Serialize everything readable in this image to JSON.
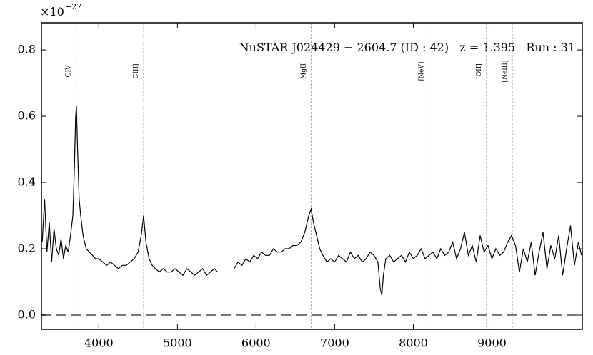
{
  "chart_data": {
    "type": "line",
    "title": "NuSTAR J024429 − 2604.7 (ID : 42)   z = 1.395   Run : 31",
    "scale_label": "×10",
    "scale_exponent": "−27",
    "xlim": [
      3270,
      10150
    ],
    "ylim": [
      -0.043,
      0.882
    ],
    "xticks": [
      4000,
      5000,
      6000,
      7000,
      8000,
      9000
    ],
    "yticks": [
      {
        "value": 0,
        "label": "0.0"
      },
      0.2,
      0.4,
      0.6,
      0.8
    ],
    "reference_line": 0,
    "annotations": [
      {
        "label": "CIV",
        "x": 3710
      },
      {
        "label": "CIII]",
        "x": 4570
      },
      {
        "label": "MgII",
        "x": 6700
      },
      {
        "label": "[NeV]",
        "x": 8200
      },
      {
        "label": "[OII]",
        "x": 8930
      },
      {
        "label": "[NeIII]",
        "x": 9260
      }
    ],
    "x": [
      3280,
      3310,
      3340,
      3370,
      3400,
      3430,
      3460,
      3490,
      3520,
      3550,
      3580,
      3610,
      3640,
      3670,
      3690,
      3705,
      3715,
      3730,
      3750,
      3770,
      3800,
      3840,
      3880,
      3920,
      3960,
      4000,
      4050,
      4100,
      4150,
      4200,
      4250,
      4300,
      4350,
      4400,
      4450,
      4500,
      4540,
      4570,
      4600,
      4640,
      4680,
      4720,
      4770,
      4820,
      4870,
      4920,
      4970,
      5020,
      5070,
      5120,
      5170,
      5220,
      5270,
      5320,
      5370,
      5420,
      5470,
      5510,
      5600,
      5720,
      5770,
      5820,
      5870,
      5920,
      5970,
      6020,
      6070,
      6120,
      6170,
      6220,
      6270,
      6320,
      6370,
      6420,
      6470,
      6520,
      6570,
      6620,
      6670,
      6700,
      6730,
      6770,
      6810,
      6850,
      6900,
      6950,
      7000,
      7050,
      7100,
      7150,
      7200,
      7250,
      7300,
      7350,
      7400,
      7450,
      7500,
      7550,
      7580,
      7600,
      7620,
      7650,
      7700,
      7750,
      7800,
      7850,
      7900,
      7950,
      8000,
      8050,
      8100,
      8150,
      8200,
      8250,
      8300,
      8350,
      8400,
      8450,
      8500,
      8550,
      8600,
      8650,
      8700,
      8750,
      8800,
      8850,
      8900,
      8950,
      9000,
      9050,
      9100,
      9150,
      9200,
      9250,
      9300,
      9350,
      9400,
      9450,
      9500,
      9550,
      9600,
      9650,
      9700,
      9750,
      9800,
      9850,
      9900,
      9950,
      10000,
      10050,
      10100,
      10140
    ],
    "series": [
      {
        "color": "#000000",
        "values": [
          0.22,
          0.35,
          0.19,
          0.28,
          0.16,
          0.26,
          0.2,
          0.18,
          0.23,
          0.17,
          0.21,
          0.19,
          0.24,
          0.3,
          0.45,
          0.6,
          0.63,
          0.5,
          0.35,
          0.3,
          0.24,
          0.2,
          0.19,
          0.18,
          0.17,
          0.17,
          0.16,
          0.15,
          0.16,
          0.15,
          0.14,
          0.15,
          0.15,
          0.16,
          0.17,
          0.19,
          0.24,
          0.3,
          0.22,
          0.17,
          0.15,
          0.14,
          0.13,
          0.14,
          0.13,
          0.13,
          0.14,
          0.13,
          0.12,
          0.14,
          0.13,
          0.12,
          0.13,
          0.14,
          0.12,
          0.13,
          0.14,
          0.13,
          null,
          0.14,
          0.16,
          0.15,
          0.17,
          0.16,
          0.18,
          0.17,
          0.19,
          0.18,
          0.18,
          0.2,
          0.19,
          0.19,
          0.2,
          0.2,
          0.21,
          0.21,
          0.22,
          0.25,
          0.3,
          0.32,
          0.28,
          0.24,
          0.2,
          0.18,
          0.16,
          0.17,
          0.16,
          0.18,
          0.17,
          0.16,
          0.19,
          0.17,
          0.18,
          0.16,
          0.17,
          0.19,
          0.18,
          0.16,
          0.08,
          0.06,
          0.12,
          0.17,
          0.18,
          0.16,
          0.17,
          0.18,
          0.16,
          0.19,
          0.17,
          0.18,
          0.2,
          0.17,
          0.18,
          0.19,
          0.17,
          0.2,
          0.18,
          0.19,
          0.22,
          0.17,
          0.2,
          0.25,
          0.18,
          0.21,
          0.16,
          0.24,
          0.19,
          0.21,
          0.17,
          0.2,
          0.18,
          0.19,
          0.22,
          0.24,
          0.21,
          0.13,
          0.2,
          0.16,
          0.22,
          0.12,
          0.19,
          0.25,
          0.14,
          0.21,
          0.17,
          0.24,
          0.12,
          0.2,
          0.27,
          0.15,
          0.22,
          0.18
        ]
      }
    ]
  }
}
